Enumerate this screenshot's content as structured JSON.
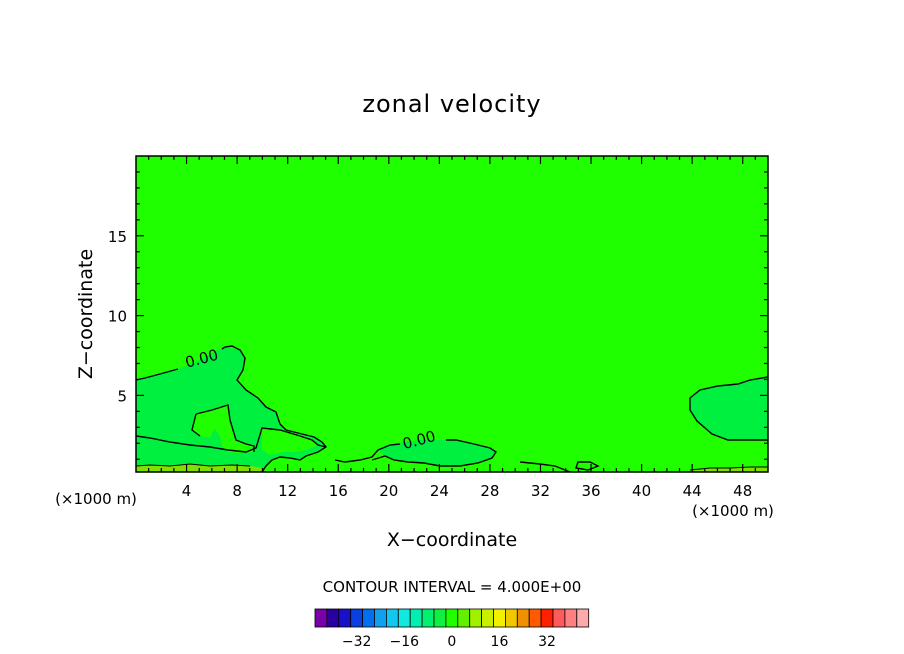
{
  "chart_data": {
    "type": "contour",
    "title": "zonal velocity",
    "xlabel": "X−coordinate",
    "ylabel": "Z−coordinate",
    "x_unit_left": "(×1000 m)",
    "x_unit_right": "(×1000 m)",
    "xlim": [
      0,
      50
    ],
    "ylim": [
      0.2,
      20
    ],
    "x_ticks": [
      4,
      8,
      12,
      16,
      20,
      24,
      28,
      32,
      36,
      40,
      44,
      48
    ],
    "x_tick_labels": [
      "4",
      "8",
      "12",
      "16",
      "20",
      "24",
      "28",
      "32",
      "36",
      "40",
      "44",
      "48"
    ],
    "y_ticks": [
      5,
      10,
      15
    ],
    "y_tick_labels": [
      "5",
      "10",
      "15"
    ],
    "contour_labels": [
      {
        "text": "0.00",
        "x": 5.3,
        "y": 7.0
      },
      {
        "text": "0.00",
        "x": 22.5,
        "y": 1.9
      }
    ],
    "contour_interval_label": "CONTOUR INTERVAL = 4.000E+00",
    "colorbar": {
      "colors": [
        "#7a00a8",
        "#2a00a0",
        "#1a10c8",
        "#0a40e0",
        "#0070f0",
        "#10a0f0",
        "#10c8f0",
        "#10e8e0",
        "#00f0b0",
        "#00f070",
        "#10f040",
        "#20ff00",
        "#60f000",
        "#a0f000",
        "#c8f000",
        "#f0f000",
        "#f0c800",
        "#f09000",
        "#ff5a00",
        "#ff2000",
        "#ff5a5a",
        "#ff8080",
        "#ffaaaa"
      ],
      "tick_labels": [
        "−32",
        "−16",
        "0",
        "16",
        "32"
      ],
      "tick_values": [
        -32,
        -16,
        0,
        16,
        32
      ]
    },
    "field_colors": {
      "background": "#20ff00",
      "slightly_negative": "#00f040",
      "slightly_positive": "#80e000"
    },
    "grid": false
  }
}
